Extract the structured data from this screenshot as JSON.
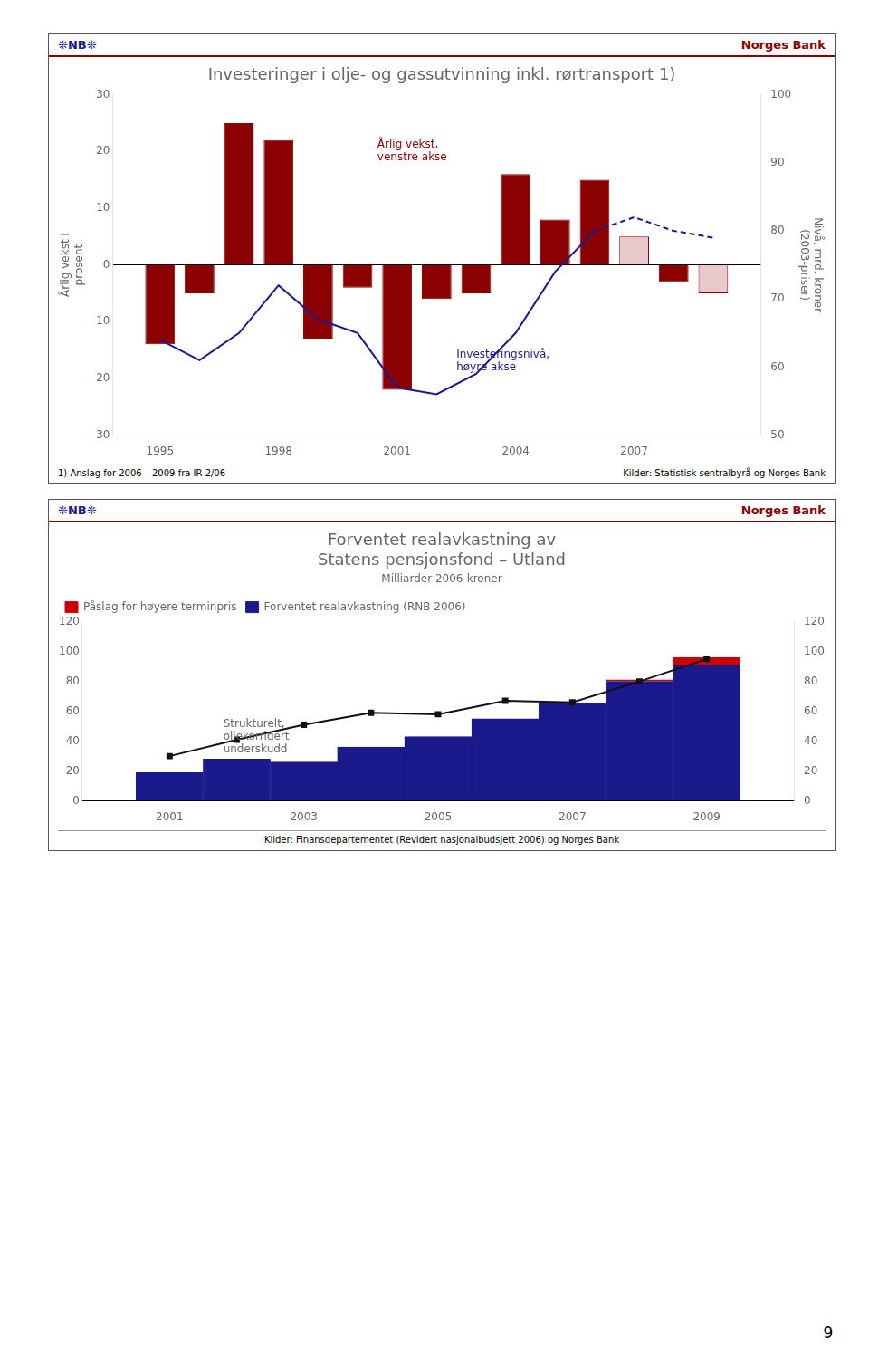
{
  "page": {
    "logo": "❊NB❊",
    "logo_color": "#1a1a8c",
    "bank": "Norges Bank",
    "bank_color": "#8B0000",
    "page_number": "9"
  },
  "chart_data": [
    {
      "type": "bar",
      "title": "Investeringer i olje- og gassutvinning inkl. rørtransport 1)",
      "ylabel": "Årlig vekst i\nprosent",
      "y2label": "Nivå, mrd. kroner\n(2003-priser)",
      "x": [
        1995,
        1996,
        1997,
        1998,
        1999,
        2000,
        2001,
        2002,
        2003,
        2004,
        2005,
        2006,
        2007,
        2008,
        2009
      ],
      "xlim": [
        1993.8,
        2010.2
      ],
      "xticks": [
        1995,
        1998,
        2001,
        2004,
        2007
      ],
      "ylim": [
        -30,
        30
      ],
      "yticks": [
        -30,
        -20,
        -10,
        0,
        10,
        20,
        30
      ],
      "y2lim": [
        50,
        100
      ],
      "y2ticks": [
        50,
        60,
        70,
        80,
        90,
        100
      ],
      "grid": false,
      "series": [
        {
          "type": "bar",
          "axis": "y",
          "color": "#8B0000",
          "colors": [
            "#8B0000",
            "#8B0000",
            "#8B0000",
            "#8B0000",
            "#8B0000",
            "#8B0000",
            "#8B0000",
            "#8B0000",
            "#8B0000",
            "#8B0000",
            "#8B0000",
            "#8B0000",
            "#e8c8c8",
            "#8B0000",
            "#e8c8c8"
          ],
          "values": [
            -14,
            -5,
            25,
            22,
            -13,
            -4,
            -22,
            -6,
            -5,
            16,
            8,
            15,
            5,
            -3,
            -5
          ]
        },
        {
          "type": "line",
          "axis": "y2",
          "color": "#1a1a8c",
          "line_style": "solid",
          "values": [
            64,
            61,
            65,
            72,
            67,
            65,
            57,
            56,
            59,
            65,
            74,
            80,
            null,
            null,
            null
          ]
        },
        {
          "type": "line",
          "axis": "y2",
          "color": "#1a1a8c",
          "line_style": "dashed",
          "values": [
            null,
            null,
            null,
            null,
            null,
            null,
            null,
            null,
            null,
            null,
            null,
            80,
            82,
            80,
            79
          ]
        }
      ],
      "annotations": [
        {
          "text": "Årlig vekst,\nvenstre akse",
          "x": 2000.5,
          "y": 20,
          "color": "#8B0000"
        },
        {
          "text": "Investeringsnivå,\nhøyre akse",
          "x": 2002.5,
          "y": -17,
          "color": "#1a1a8c"
        }
      ],
      "footnote": "1) Anslag for 2006 – 2009 fra IR 2/06",
      "source": "Kilder: Statistisk sentralbyrå og Norges Bank"
    },
    {
      "type": "bar",
      "title": "Forventet realavkastning av\nStatens pensjonsfond – Utland",
      "subtitle": "Milliarder 2006-kroner",
      "x": [
        2001,
        2002,
        2003,
        2004,
        2005,
        2006,
        2007,
        2008,
        2009
      ],
      "xlim": [
        1999.7,
        2010.3
      ],
      "xticks": [
        2001,
        2003,
        2005,
        2007,
        2009
      ],
      "ylim": [
        0,
        120
      ],
      "yticks": [
        0,
        20,
        40,
        60,
        80,
        100,
        120
      ],
      "y2lim": [
        0,
        120
      ],
      "y2ticks": [
        0,
        20,
        40,
        60,
        80,
        100,
        120
      ],
      "grid": false,
      "stacked": true,
      "legend": "upper left",
      "series": [
        {
          "name": "Forventet realavkastning (RNB 2006)",
          "type": "bar",
          "color": "#1a1a8c",
          "values": [
            19,
            28,
            26,
            36,
            43,
            55,
            65,
            80,
            91
          ]
        },
        {
          "name": "Påslag for høyere terminpris",
          "type": "bar",
          "color": "#CC0000",
          "values": [
            0,
            0,
            0,
            0,
            0,
            0,
            0,
            1,
            5
          ]
        },
        {
          "type": "line",
          "color": "#111111",
          "marker": "square",
          "values": [
            30,
            41,
            51,
            59,
            58,
            67,
            66,
            80,
            95
          ]
        }
      ],
      "annotations": [
        {
          "text": "Strukturelt,\noljekorrigert\nunderskudd",
          "x": 2001.8,
          "y": 55
        }
      ],
      "source": "Kilder: Finansdepartementet (Revidert nasjonalbudsjett 2006) og Norges Bank"
    }
  ]
}
